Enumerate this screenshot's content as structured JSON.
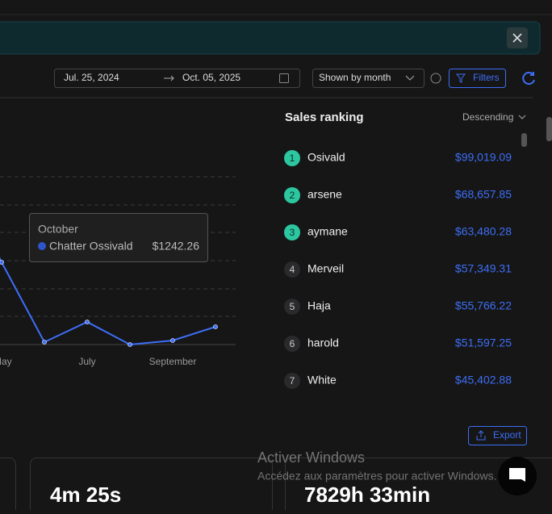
{
  "toolbar": {
    "date_start": "Jul. 25, 2024",
    "date_end": "Oct. 05, 2025",
    "period": "Shown by month",
    "filters": "Filters"
  },
  "chart": {
    "x_labels": [
      "May",
      "July",
      "September"
    ],
    "tooltip": {
      "title": "October",
      "series": "Chatter Ossivald",
      "value": "$1242.26"
    }
  },
  "ranking": {
    "title": "Sales ranking",
    "order": "Descending",
    "rows": [
      [
        "1",
        "Osivald",
        "$99,019.09"
      ],
      [
        "2",
        "arsene",
        "$68,657.85"
      ],
      [
        "3",
        "aymane",
        "$63,480.28"
      ],
      [
        "4",
        "Merveil",
        "$57,349.31"
      ],
      [
        "5",
        "Haja",
        "$55,766.22"
      ],
      [
        "6",
        "harold",
        "$51,597.25"
      ],
      [
        "7",
        "White",
        "$45,402.88"
      ]
    ],
    "export": "Export"
  },
  "cards": [
    "4m 25s",
    "7829h 33min"
  ],
  "watermark": {
    "title": "Activer Windows",
    "text": "Accédez aux paramètres pour activer Windows."
  }
}
